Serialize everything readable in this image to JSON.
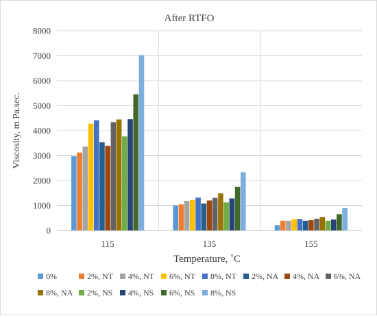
{
  "chart_data": {
    "type": "bar",
    "title": "After RTFO",
    "xlabel": "Temperature, ˚C",
    "ylabel": "Viscosity, m Pa.sec.",
    "ylim": [
      0,
      8000
    ],
    "ytick_step": 1000,
    "grid": true,
    "legend_position": "bottom",
    "categories": [
      "115",
      "135",
      "155"
    ],
    "series": [
      {
        "name": "0%",
        "color": "#5b9bd5",
        "values": [
          2980,
          1000,
          210
        ]
      },
      {
        "name": "2%, NT",
        "color": "#ed7d31",
        "values": [
          3120,
          1050,
          390
        ]
      },
      {
        "name": "4%, NT",
        "color": "#a5a5a5",
        "values": [
          3360,
          1180,
          390
        ]
      },
      {
        "name": "6%, NT",
        "color": "#ffc000",
        "values": [
          4280,
          1230,
          450
        ]
      },
      {
        "name": "8%, NT",
        "color": "#4472c4",
        "values": [
          4410,
          1320,
          460
        ]
      },
      {
        "name": "2%, NA",
        "color": "#255e91",
        "values": [
          3530,
          1080,
          390
        ]
      },
      {
        "name": "4%, NA",
        "color": "#9e480e",
        "values": [
          3390,
          1200,
          410
        ]
      },
      {
        "name": "6%, NA",
        "color": "#636363",
        "values": [
          4340,
          1310,
          470
        ]
      },
      {
        "name": "8%, NA",
        "color": "#997300",
        "values": [
          4450,
          1490,
          540
        ]
      },
      {
        "name": "2%, NS",
        "color": "#70ad47",
        "values": [
          3770,
          1130,
          390
        ]
      },
      {
        "name": "4%, NS",
        "color": "#264478",
        "values": [
          4460,
          1280,
          440
        ]
      },
      {
        "name": "6%, NS",
        "color": "#43682b",
        "values": [
          5450,
          1750,
          650
        ]
      },
      {
        "name": "8%, NS",
        "color": "#7cafdd",
        "values": [
          7020,
          2330,
          900
        ]
      }
    ]
  }
}
